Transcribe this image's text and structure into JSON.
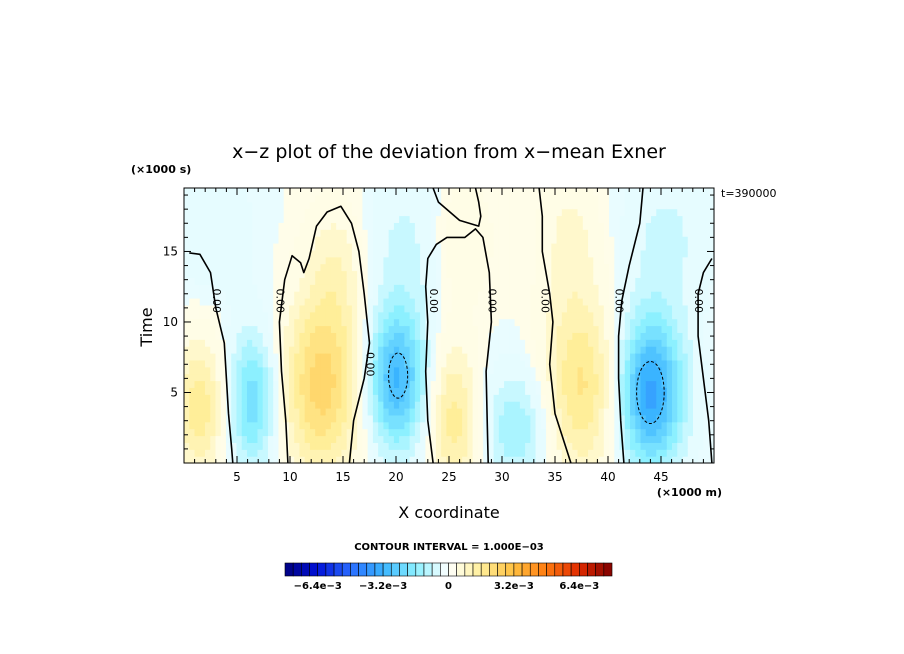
{
  "chart_data": {
    "type": "heatmap",
    "subtype": "filled contour",
    "title": "x−z plot of the deviation from x−mean Exner",
    "xlabel": "X coordinate",
    "ylabel": "Time",
    "x_unit": "(×1000 m)",
    "y_unit": "(×1000 s)",
    "time_note": "t=390000",
    "xlim": [
      0,
      50
    ],
    "ylim": [
      0,
      19.5
    ],
    "xticks": [
      5,
      10,
      15,
      20,
      25,
      30,
      35,
      40,
      45
    ],
    "yticks": [
      5,
      10,
      15
    ],
    "grid": false,
    "contour_interval_text": "CONTOUR INTERVAL = 1.000E−03",
    "contour_label": "0.00",
    "zero_contour_labels": [
      {
        "x": 3.0,
        "y": 11.5,
        "angle": 90
      },
      {
        "x": 9.0,
        "y": 11.5,
        "angle": 90
      },
      {
        "x": 17.5,
        "y": 7.0,
        "angle": 90
      },
      {
        "x": 23.5,
        "y": 11.5,
        "angle": 90
      },
      {
        "x": 29.0,
        "y": 11.5,
        "angle": 90
      },
      {
        "x": 34.0,
        "y": 11.5,
        "angle": 90
      },
      {
        "x": 41.0,
        "y": 11.5,
        "angle": 90
      },
      {
        "x": 48.5,
        "y": 11.5,
        "angle": 90
      }
    ],
    "colorbar": {
      "range": [
        -0.008,
        0.008
      ],
      "tick_labels": [
        "−6.4e−3",
        "−3.2e−3",
        "0",
        "3.2e−3",
        "6.4e−3"
      ],
      "tick_values": [
        -0.0064,
        -0.0032,
        0,
        0.0032,
        0.0064
      ],
      "stops": [
        {
          "v": -1.0,
          "c": "#00007f"
        },
        {
          "v": -0.8,
          "c": "#0010d8"
        },
        {
          "v": -0.6,
          "c": "#2a6cff"
        },
        {
          "v": -0.4,
          "c": "#3ab4ff"
        },
        {
          "v": -0.2,
          "c": "#8cf0ff"
        },
        {
          "v": -0.05,
          "c": "#e6fcff"
        },
        {
          "v": 0.0,
          "c": "#ffffff"
        },
        {
          "v": 0.05,
          "c": "#fffde6"
        },
        {
          "v": 0.2,
          "c": "#ffee99"
        },
        {
          "v": 0.4,
          "c": "#ffc040"
        },
        {
          "v": 0.6,
          "c": "#ff7a10"
        },
        {
          "v": 0.8,
          "c": "#e02a00"
        },
        {
          "v": 1.0,
          "c": "#7f0000"
        }
      ]
    },
    "field": {
      "nx": 101,
      "ny": 40,
      "positive_cells": [
        {
          "x": 1.5,
          "y": 4.0,
          "sx": 1.6,
          "sy": 3.5,
          "amp": 0.0017
        },
        {
          "x": 13.0,
          "y": 5.5,
          "sx": 2.6,
          "sy": 4.5,
          "amp": 0.0024
        },
        {
          "x": 14.5,
          "y": 14.0,
          "sx": 2.0,
          "sy": 3.5,
          "amp": 0.0008
        },
        {
          "x": 25.5,
          "y": 3.0,
          "sx": 1.6,
          "sy": 4.0,
          "amp": 0.0016
        },
        {
          "x": 26.0,
          "y": 16.0,
          "sx": 2.0,
          "sy": 3.0,
          "amp": 0.0007
        },
        {
          "x": 37.5,
          "y": 5.5,
          "sx": 2.6,
          "sy": 4.5,
          "amp": 0.0019
        },
        {
          "x": 36.5,
          "y": 16.0,
          "sx": 2.0,
          "sy": 3.5,
          "amp": 0.0007
        }
      ],
      "negative_cells": [
        {
          "x": 6.5,
          "y": 4.5,
          "sx": 1.6,
          "sy": 3.5,
          "amp": 0.0021
        },
        {
          "x": 20.0,
          "y": 6.0,
          "sx": 1.9,
          "sy": 3.5,
          "amp": 0.0031
        },
        {
          "x": 31.5,
          "y": 2.5,
          "sx": 2.2,
          "sy": 3.0,
          "amp": 0.0014
        },
        {
          "x": 44.0,
          "y": 5.0,
          "sx": 2.2,
          "sy": 3.8,
          "amp": 0.0036
        },
        {
          "x": 21.0,
          "y": 15.5,
          "sx": 3.0,
          "sy": 4.0,
          "amp": 0.0007
        },
        {
          "x": 45.5,
          "y": 16.0,
          "sx": 3.0,
          "sy": 4.0,
          "amp": 0.0007
        },
        {
          "x": 2.5,
          "y": 16.5,
          "sx": 3.0,
          "sy": 3.5,
          "amp": 0.0005
        }
      ]
    },
    "zero_contours": [
      [
        [
          0.5,
          14.9
        ],
        [
          1.5,
          14.8
        ],
        [
          2.5,
          13.5
        ],
        [
          3.0,
          11.0
        ],
        [
          3.8,
          8.5
        ],
        [
          4.0,
          6.0
        ],
        [
          4.2,
          3.5
        ],
        [
          4.5,
          1.0
        ],
        [
          4.6,
          0.0
        ]
      ],
      [
        [
          9.8,
          0.0
        ],
        [
          9.6,
          3.0
        ],
        [
          9.2,
          6.5
        ],
        [
          9.0,
          10.0
        ],
        [
          9.5,
          13.0
        ],
        [
          10.2,
          14.7
        ],
        [
          11.0,
          14.2
        ],
        [
          11.3,
          13.5
        ],
        [
          11.8,
          14.5
        ],
        [
          12.5,
          16.8
        ],
        [
          13.5,
          17.8
        ],
        [
          14.8,
          18.2
        ],
        [
          15.8,
          17.0
        ],
        [
          16.5,
          15.0
        ],
        [
          17.0,
          12.0
        ],
        [
          17.5,
          8.5
        ],
        [
          17.0,
          6.0
        ],
        [
          16.0,
          3.0
        ],
        [
          15.6,
          0.0
        ]
      ],
      [
        [
          23.5,
          0.0
        ],
        [
          23.0,
          3.0
        ],
        [
          22.8,
          6.5
        ],
        [
          23.0,
          10.0
        ],
        [
          22.8,
          12.5
        ],
        [
          23.0,
          14.5
        ],
        [
          23.8,
          15.5
        ],
        [
          24.8,
          16.0
        ],
        [
          26.5,
          16.0
        ],
        [
          27.5,
          16.6
        ],
        [
          28.2,
          16.0
        ],
        [
          28.8,
          13.5
        ],
        [
          29.0,
          10.0
        ],
        [
          28.5,
          6.5
        ],
        [
          28.6,
          3.0
        ],
        [
          28.7,
          0.0
        ]
      ],
      [
        [
          23.5,
          19.5
        ],
        [
          24.0,
          18.5
        ],
        [
          26.0,
          17.2
        ],
        [
          27.8,
          16.8
        ],
        [
          28.0,
          17.5
        ],
        [
          27.8,
          18.5
        ],
        [
          27.5,
          19.5
        ]
      ],
      [
        [
          36.5,
          0.0
        ],
        [
          35.0,
          3.5
        ],
        [
          34.5,
          7.0
        ],
        [
          34.8,
          10.0
        ],
        [
          34.5,
          12.0
        ],
        [
          33.8,
          15.0
        ],
        [
          33.8,
          17.5
        ],
        [
          33.5,
          19.5
        ]
      ],
      [
        [
          41.5,
          0.0
        ],
        [
          41.2,
          3.0
        ],
        [
          41.0,
          6.0
        ],
        [
          41.0,
          9.0
        ],
        [
          41.3,
          11.5
        ],
        [
          42.0,
          14.0
        ],
        [
          43.0,
          17.0
        ],
        [
          43.3,
          19.5
        ]
      ],
      [
        [
          49.8,
          14.5
        ],
        [
          49.0,
          13.5
        ],
        [
          48.5,
          12.0
        ],
        [
          48.5,
          9.0
        ],
        [
          49.0,
          6.0
        ],
        [
          49.5,
          3.0
        ],
        [
          49.8,
          0.0
        ]
      ]
    ],
    "negative_contours": [
      {
        "x": 20.2,
        "y": 6.2,
        "rx": 0.9,
        "ry": 1.6
      },
      {
        "x": 44.0,
        "y": 5.0,
        "rx": 1.3,
        "ry": 2.2
      }
    ]
  }
}
